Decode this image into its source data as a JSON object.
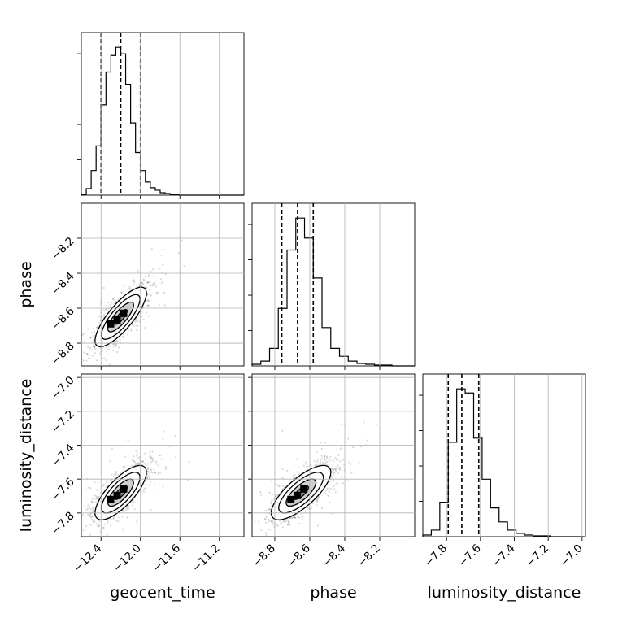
{
  "chart_data": {
    "type": "corner",
    "parameters": [
      "geocent_time",
      "phase",
      "luminosity_distance"
    ],
    "axis_labels": {
      "geocent_time": "geocent_time",
      "phase": "phase",
      "luminosity_distance": "luminosity_distance"
    },
    "ranges": {
      "geocent_time": [
        -12.6,
        -10.95
      ],
      "phase": [
        -8.93,
        -8.0
      ],
      "luminosity_distance": [
        -7.94,
        -6.98
      ]
    },
    "ticks": {
      "geocent_time": [
        -12.4,
        -12.0,
        -11.6,
        -11.2
      ],
      "phase": [
        -8.8,
        -8.6,
        -8.4,
        -8.2
      ],
      "luminosity_distance": [
        -7.8,
        -7.6,
        -7.4,
        -7.2,
        -7.0
      ]
    },
    "tick_labels": {
      "geocent_time": [
        "−12.4",
        "−12.0",
        "−11.6",
        "−11.2"
      ],
      "phase": [
        "−8.8",
        "−8.6",
        "−8.4",
        "−8.2"
      ],
      "luminosity_distance": [
        "−7.8",
        "−7.6",
        "−7.4",
        "−7.2",
        "−7.0"
      ]
    },
    "quantiles": {
      "geocent_time": [
        -12.4,
        -12.2,
        -12.0
      ],
      "phase": [
        -8.76,
        -8.67,
        -8.58
      ],
      "luminosity_distance": [
        -7.79,
        -7.71,
        -7.61
      ]
    },
    "histograms": {
      "geocent_time": {
        "bin_edges": [
          -12.6,
          -12.55,
          -12.5,
          -12.45,
          -12.4,
          -12.35,
          -12.3,
          -12.25,
          -12.2,
          -12.15,
          -12.1,
          -12.05,
          -12.0,
          -11.95,
          -11.9,
          -11.85,
          -11.8,
          -11.75,
          -11.7,
          -11.65,
          -11.6,
          -11.55,
          -11.5,
          -11.45,
          -11.4,
          -11.35,
          -11.3,
          -11.25,
          -11.2,
          -11.15,
          -11.1,
          -11.05,
          -11.0,
          -10.95
        ],
        "counts": [
          1,
          8,
          30,
          60,
          110,
          150,
          170,
          180,
          172,
          135,
          88,
          52,
          30,
          16,
          9,
          6,
          3,
          2,
          1,
          1,
          0,
          0,
          0,
          0,
          0,
          0,
          0,
          0,
          0,
          0,
          0,
          0,
          0
        ]
      },
      "phase": {
        "bin_edges": [
          -8.93,
          -8.88,
          -8.83,
          -8.78,
          -8.73,
          -8.68,
          -8.63,
          -8.58,
          -8.53,
          -8.48,
          -8.43,
          -8.38,
          -8.33,
          -8.28,
          -8.23,
          -8.18,
          -8.13,
          -8.08,
          -8.03,
          -8.0
        ],
        "counts": [
          2,
          6,
          22,
          72,
          145,
          185,
          160,
          110,
          48,
          22,
          12,
          6,
          3,
          2,
          1,
          1,
          0,
          0,
          0
        ]
      },
      "luminosity_distance": {
        "bin_edges": [
          -7.94,
          -7.89,
          -7.84,
          -7.79,
          -7.74,
          -7.69,
          -7.64,
          -7.59,
          -7.54,
          -7.49,
          -7.44,
          -7.39,
          -7.34,
          -7.29,
          -7.24,
          -7.19,
          -7.14,
          -7.09,
          -7.04,
          -6.99
        ],
        "counts": [
          2,
          8,
          42,
          115,
          180,
          175,
          120,
          70,
          35,
          18,
          8,
          4,
          2,
          1,
          1,
          0,
          0,
          0,
          0
        ]
      }
    },
    "scatter_2d": [
      {
        "x": "geocent_time",
        "y": "phase",
        "center": [
          -12.2,
          -8.65
        ],
        "spread": [
          0.13,
          0.085
        ],
        "correlation": 0.8
      },
      {
        "x": "geocent_time",
        "y": "luminosity_distance",
        "center": [
          -12.2,
          -7.68
        ],
        "spread": [
          0.13,
          0.08
        ],
        "correlation": 0.75
      },
      {
        "x": "phase",
        "y": "luminosity_distance",
        "center": [
          -8.65,
          -7.68
        ],
        "spread": [
          0.085,
          0.08
        ],
        "correlation": 0.75
      }
    ],
    "contour_levels": [
      0.5,
      1.0,
      1.5,
      2.0
    ],
    "grid": true,
    "colors": {
      "line": "#000000",
      "grid": "#b0b0b0",
      "points": "#000000"
    }
  }
}
